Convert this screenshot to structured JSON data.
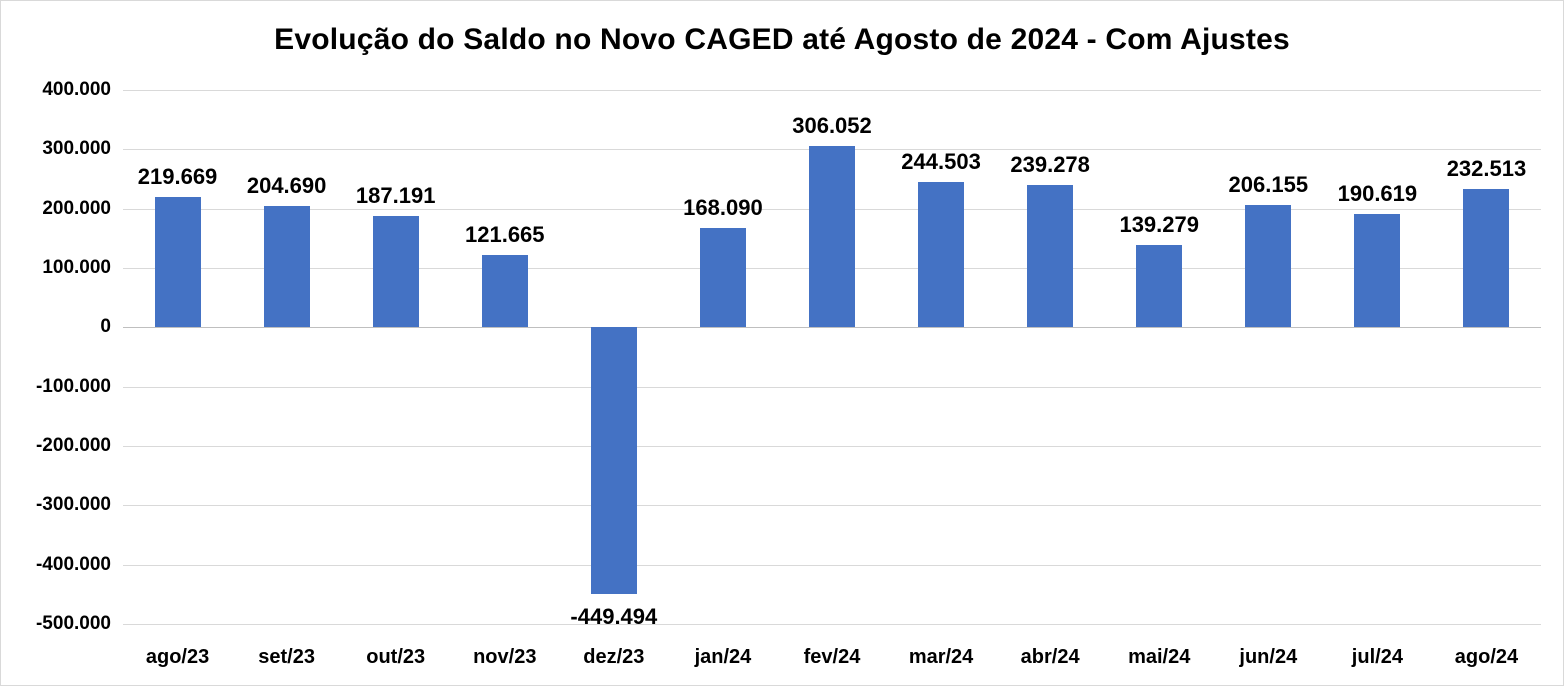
{
  "chart_data": {
    "type": "bar",
    "title": "Evolução do Saldo no Novo CAGED até Agosto de 2024 - Com Ajustes",
    "categories": [
      "ago/23",
      "set/23",
      "out/23",
      "nov/23",
      "dez/23",
      "jan/24",
      "fev/24",
      "mar/24",
      "abr/24",
      "mai/24",
      "jun/24",
      "jul/24",
      "ago/24"
    ],
    "values": [
      219669,
      204690,
      187191,
      121665,
      -449494,
      168090,
      306052,
      244503,
      239278,
      139279,
      206155,
      190619,
      232513
    ],
    "data_labels": [
      "219.669",
      "204.690",
      "187.191",
      "121.665",
      "-449.494",
      "168.090",
      "306.052",
      "244.503",
      "239.278",
      "139.279",
      "206.155",
      "190.619",
      "232.513"
    ],
    "xlabel": "",
    "ylabel": "",
    "ylim": [
      -500000,
      400000
    ],
    "ytick_step": 100000,
    "ytick_labels": [
      "400.000",
      "300.000",
      "200.000",
      "100.000",
      "0",
      "-100.000",
      "-200.000",
      "-300.000",
      "-400.000",
      "-500.000"
    ],
    "grid": true,
    "legend": false,
    "colors": {
      "bar": "#4472C4",
      "gridline": "#d9d9d9",
      "zero_axis_line": "#bfbfbf",
      "text": "#000000",
      "background": "#ffffff"
    }
  }
}
